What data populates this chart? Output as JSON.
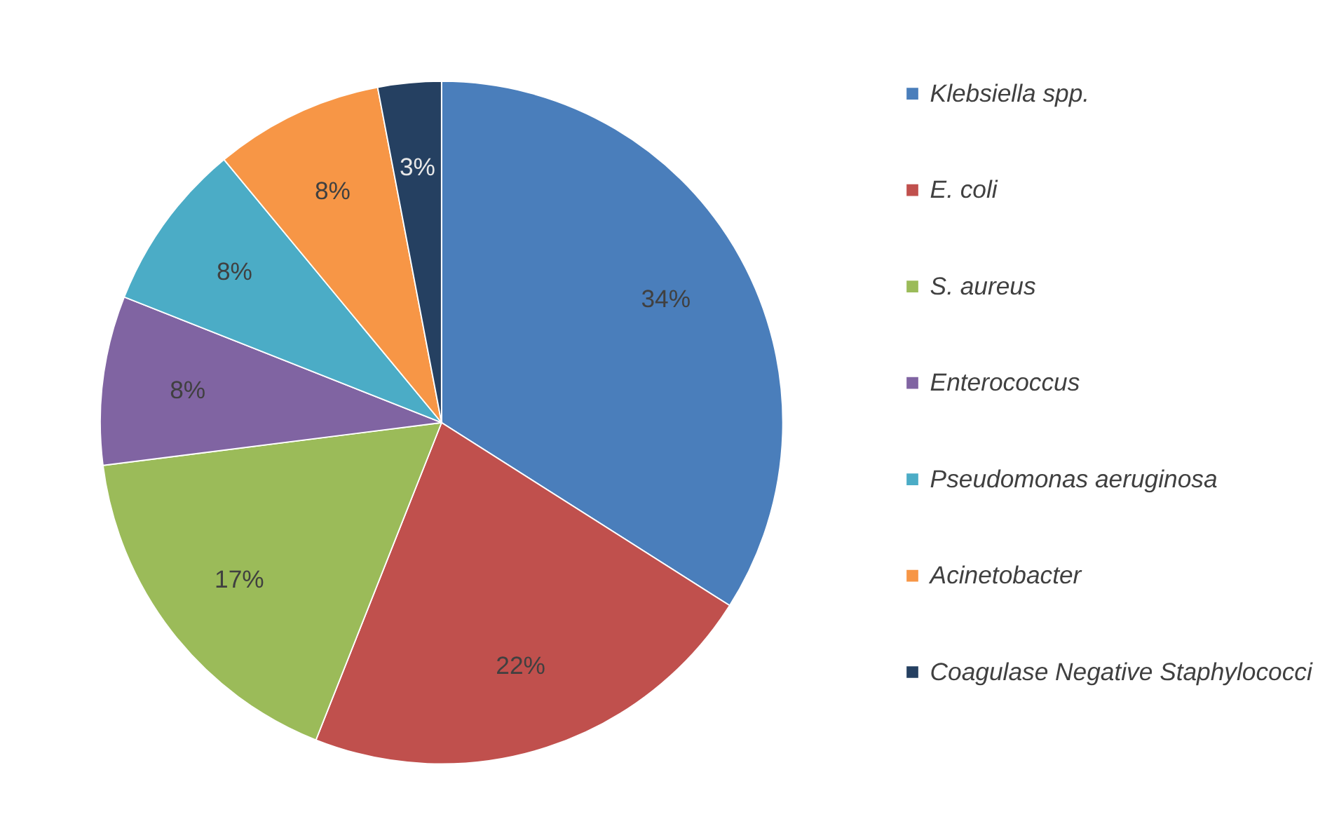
{
  "chart_data": {
    "type": "pie",
    "categories": [
      "Klebsiella spp.",
      "E. coli",
      "S. aureus",
      "Enterococcus",
      "Pseudomonas aeruginosa",
      "Acinetobacter",
      "Coagulase Negative Staphylococci"
    ],
    "values": [
      34,
      22,
      17,
      8,
      8,
      8,
      3
    ],
    "colors": [
      "#4a7ebb",
      "#c0504d",
      "#9bbb59",
      "#8064a2",
      "#4bacc6",
      "#f79646",
      "#254061"
    ],
    "value_labels": [
      "34%",
      "22%",
      "17%",
      "8%",
      "8%",
      "8%",
      "3%"
    ],
    "legend": "right"
  }
}
